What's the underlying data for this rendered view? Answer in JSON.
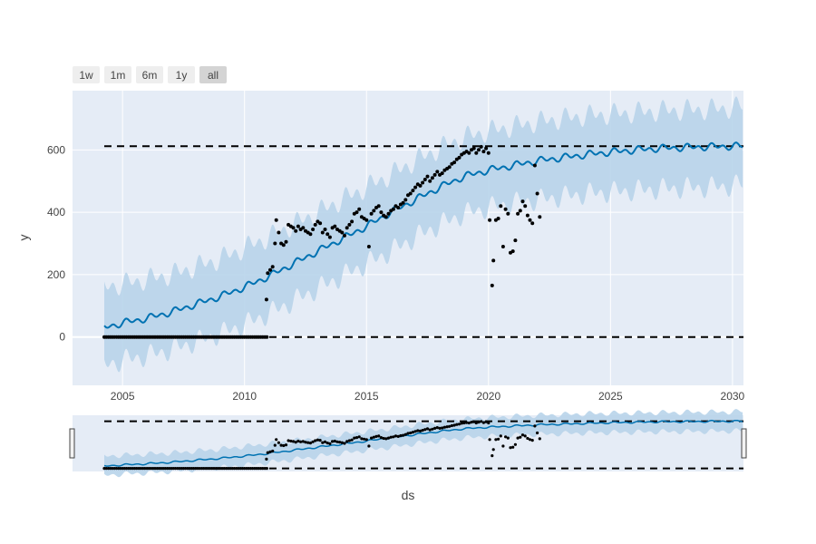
{
  "rangeselector": {
    "buttons": [
      "1w",
      "1m",
      "6m",
      "1y",
      "all"
    ],
    "active": "all"
  },
  "chart_data": {
    "type": "line",
    "title": "",
    "xlabel": "ds",
    "ylabel": "y",
    "xlim": [
      2002.95,
      2030.45
    ],
    "ylim": [
      -155,
      790
    ],
    "xticks": [
      2005,
      2010,
      2015,
      2020,
      2025,
      2030
    ],
    "yticks": [
      0,
      200,
      400,
      600
    ],
    "grid": true,
    "cap": 612,
    "floor": 0,
    "colors": {
      "background": "#e5ecf6",
      "trend": "#0072b2",
      "band": "#b8d4ea",
      "points": "#000000",
      "caps": "#000000"
    },
    "series": [
      {
        "role": "yhat",
        "x": [
          2004.25,
          2005,
          2006,
          2007,
          2008,
          2009,
          2010,
          2011,
          2012,
          2013,
          2014,
          2015,
          2016,
          2017,
          2018,
          2019,
          2020,
          2021,
          2022,
          2023,
          2024,
          2025,
          2026,
          2027,
          2028,
          2029,
          2030,
          2030.45
        ],
        "y": [
          30,
          45,
          60,
          80,
          105,
          130,
          160,
          195,
          235,
          275,
          315,
          355,
          400,
          440,
          480,
          515,
          535,
          550,
          565,
          575,
          585,
          593,
          600,
          605,
          608,
          610,
          612,
          612
        ],
        "seasonal_amplitude": 12
      },
      {
        "role": "band",
        "x": [
          2004.25,
          2005,
          2006,
          2007,
          2008,
          2009,
          2010,
          2011,
          2012,
          2013,
          2014,
          2015,
          2016,
          2017,
          2018,
          2019,
          2020,
          2021,
          2022,
          2023,
          2024,
          2025,
          2026,
          2027,
          2028,
          2029,
          2030,
          2030.45
        ],
        "upper": [
          160,
          170,
          185,
          200,
          225,
          250,
          285,
          320,
          360,
          400,
          440,
          480,
          520,
          565,
          605,
          640,
          660,
          675,
          690,
          700,
          710,
          715,
          720,
          725,
          728,
          730,
          735,
          740
        ],
        "lower": [
          -90,
          -75,
          -60,
          -40,
          -15,
          10,
          40,
          75,
          115,
          155,
          195,
          235,
          275,
          320,
          360,
          395,
          415,
          430,
          440,
          450,
          460,
          465,
          470,
          475,
          478,
          480,
          485,
          490
        ]
      }
    ],
    "observations": [
      {
        "x": [
          2004.25,
          2010.95
        ],
        "y": 0,
        "step": 0.0833,
        "note": "zero run"
      },
      {
        "x": [
          2010.9,
          2010.95,
          2011.05,
          2011.15,
          2011.25,
          2011.3,
          2011.4,
          2011.5,
          2011.6,
          2011.7,
          2011.8,
          2011.9,
          2012.0,
          2012.1,
          2012.2,
          2012.3,
          2012.4,
          2012.5,
          2012.6,
          2012.7,
          2012.8,
          2012.9,
          2013.0,
          2013.1,
          2013.2,
          2013.3,
          2013.4,
          2013.5,
          2013.6,
          2013.7,
          2013.8,
          2013.9,
          2014.0,
          2014.1,
          2014.2,
          2014.3,
          2014.4,
          2014.5,
          2014.6,
          2014.7,
          2014.8,
          2014.9,
          2015.0,
          2015.1,
          2015.2,
          2015.3,
          2015.4,
          2015.5,
          2015.6,
          2015.7,
          2015.8,
          2015.9,
          2016.0,
          2016.1,
          2016.2,
          2016.3,
          2016.4,
          2016.5,
          2016.6,
          2016.7,
          2016.8,
          2016.9,
          2017.0,
          2017.1,
          2017.2,
          2017.3,
          2017.4,
          2017.5,
          2017.6,
          2017.7,
          2017.8,
          2017.9,
          2018.0,
          2018.1,
          2018.2,
          2018.3,
          2018.4,
          2018.5,
          2018.6,
          2018.7,
          2018.8,
          2018.9,
          2019.0,
          2019.1,
          2019.2,
          2019.3,
          2019.4,
          2019.5,
          2019.6,
          2019.7,
          2019.8,
          2019.9,
          2020.0,
          2020.05,
          2020.15,
          2020.2,
          2020.3,
          2020.4,
          2020.5,
          2020.6,
          2020.7,
          2020.8,
          2020.9,
          2021.0,
          2021.1,
          2021.2,
          2021.3,
          2021.4,
          2021.5,
          2021.6,
          2021.7,
          2021.8,
          2021.9,
          2022.0,
          2022.1
        ],
        "y": [
          120,
          205,
          215,
          225,
          300,
          375,
          335,
          300,
          295,
          305,
          360,
          355,
          350,
          340,
          355,
          345,
          350,
          340,
          335,
          330,
          345,
          360,
          370,
          365,
          335,
          345,
          330,
          320,
          350,
          355,
          345,
          340,
          335,
          325,
          350,
          360,
          370,
          395,
          400,
          410,
          385,
          380,
          375,
          290,
          395,
          405,
          415,
          420,
          400,
          390,
          385,
          395,
          405,
          410,
          420,
          415,
          425,
          430,
          440,
          455,
          460,
          470,
          480,
          490,
          485,
          495,
          505,
          515,
          500,
          510,
          520,
          530,
          520,
          525,
          535,
          540,
          545,
          555,
          560,
          570,
          575,
          585,
          590,
          595,
          590,
          600,
          605,
          590,
          600,
          610,
          595,
          605,
          590,
          375,
          165,
          245,
          375,
          380,
          420,
          290,
          410,
          395,
          270,
          275,
          310,
          395,
          405,
          435,
          420,
          390,
          375,
          365,
          550,
          460,
          385
        ],
        "note": "scattered observations"
      }
    ]
  }
}
